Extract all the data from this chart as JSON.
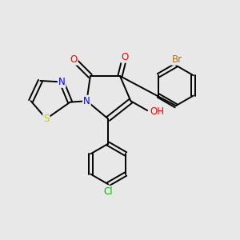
{
  "background_color": "#e8e8e8",
  "bond_color": "#000000",
  "atom_colors": {
    "O": "#ff0000",
    "N": "#0000ff",
    "S": "#cccc00",
    "Cl": "#00bb00",
    "Br": "#cc6600",
    "C": "#000000",
    "H": "#555555"
  },
  "figsize": [
    3.0,
    3.0
  ],
  "dpi": 100
}
